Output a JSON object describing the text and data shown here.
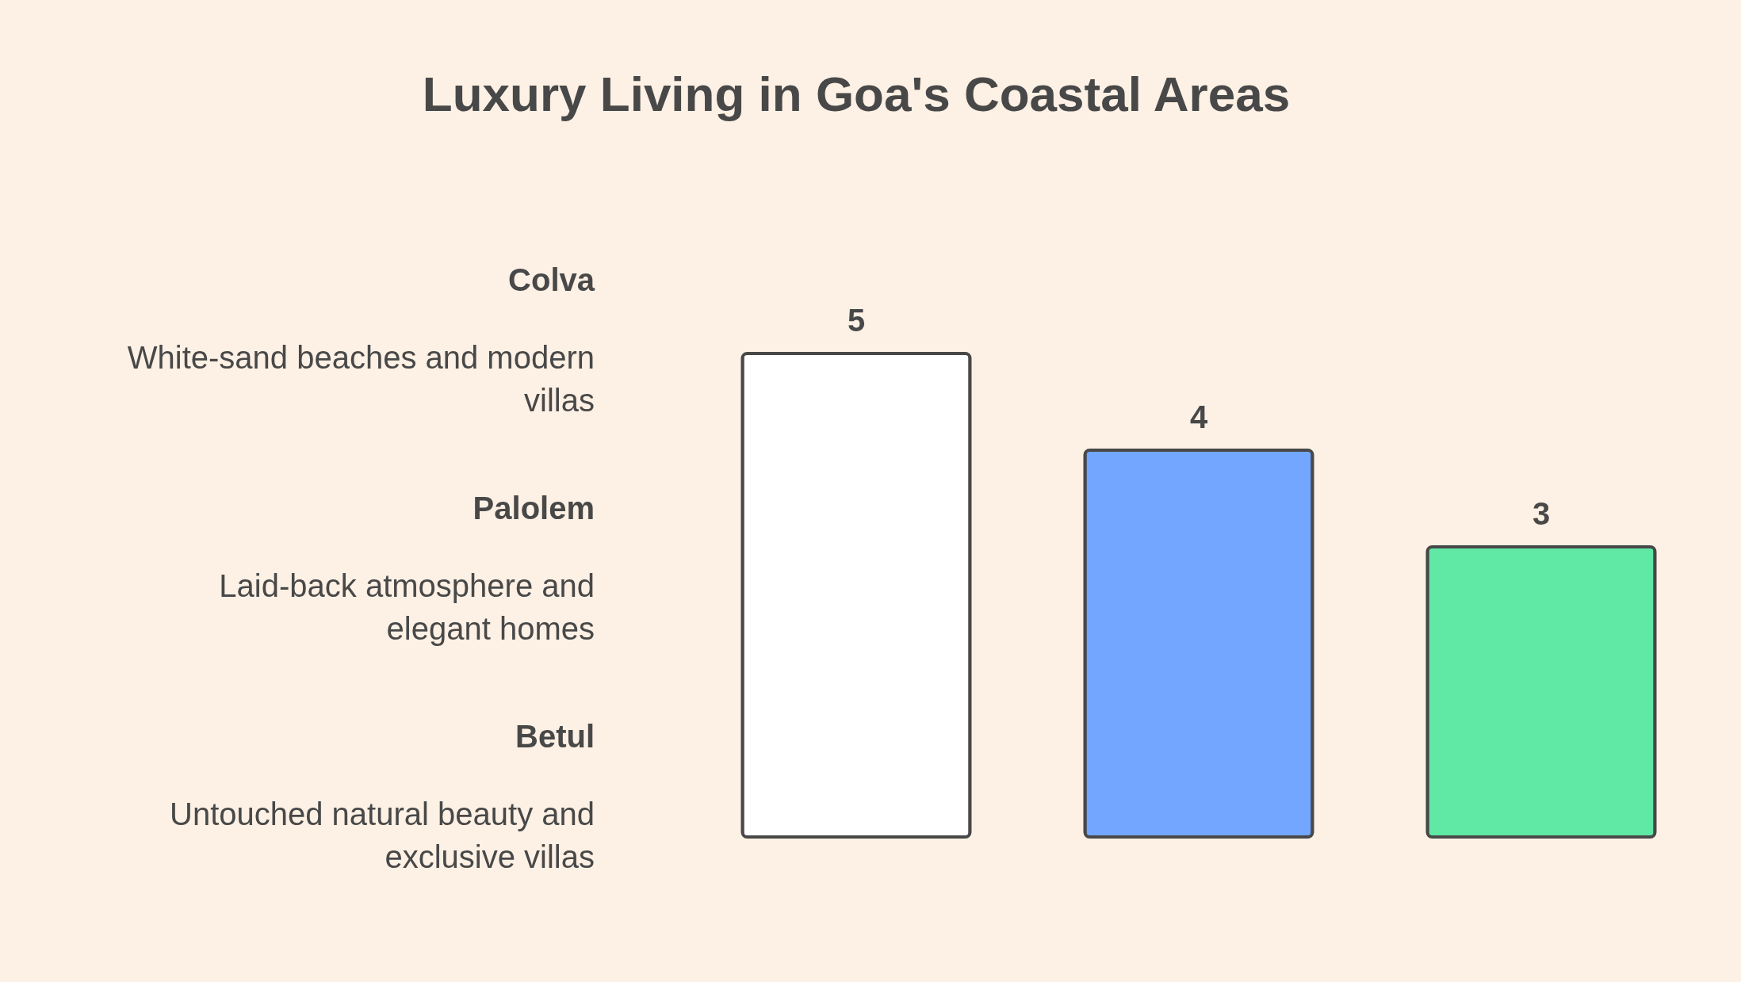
{
  "chart_data": {
    "type": "bar",
    "title": "Luxury Living in Goa's Coastal Areas",
    "categories": [
      null,
      null,
      null
    ],
    "values": [
      5,
      4,
      3
    ],
    "colors": [
      "#ffffff",
      "#72a6ff",
      "#60e8a5"
    ],
    "data_labels": true,
    "annotations": [
      "Colva",
      "White-sand beaches and modern villas",
      "Palolem",
      "Laid-back atmosphere and elegant homes",
      "Betul",
      "Untouched natural beauty and exclusive villas"
    ]
  }
}
